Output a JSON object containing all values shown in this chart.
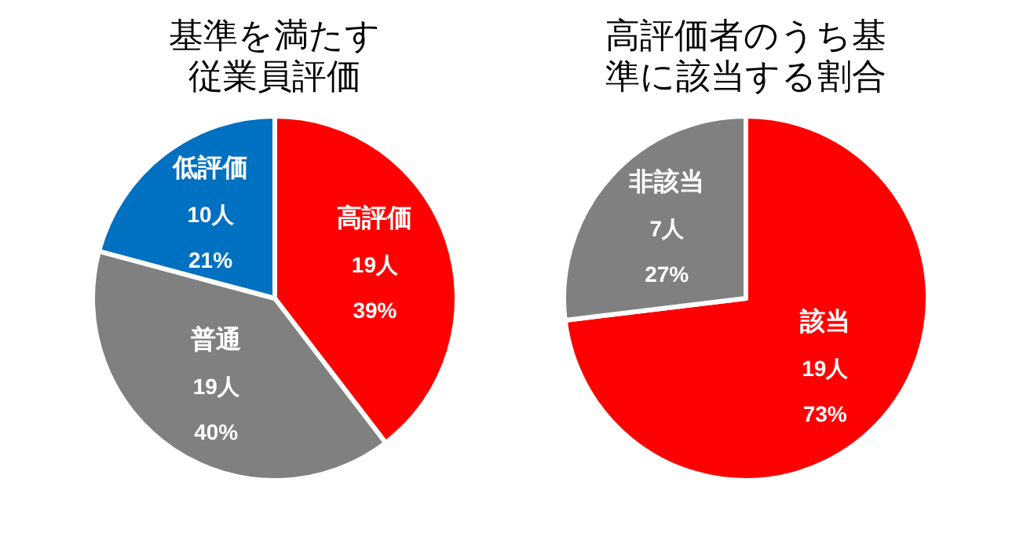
{
  "chart_data": [
    {
      "type": "pie",
      "title": "基準を満たす従業員評価",
      "categories": [
        "高評価",
        "普通",
        "低評価"
      ],
      "values": [
        19,
        19,
        10
      ],
      "value_labels": [
        "19人\n39%",
        "19人\n40%",
        "10人\n21%"
      ],
      "colors": [
        "#ff0000",
        "#808080",
        "#0070c0"
      ]
    },
    {
      "type": "pie",
      "title": "高評価者のうち基準に該当する割合",
      "categories": [
        "該当",
        "非該当"
      ],
      "values": [
        19,
        7
      ],
      "value_labels": [
        "19人\n73%",
        "7人\n27%"
      ],
      "colors": [
        "#ff0000",
        "#808080"
      ]
    }
  ]
}
